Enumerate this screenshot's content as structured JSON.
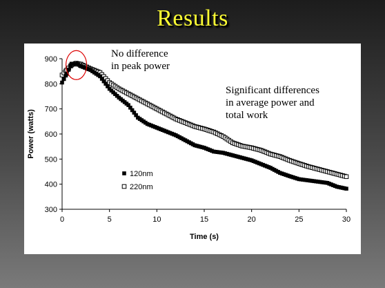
{
  "slide": {
    "title": "Results",
    "title_color": "#ffff33"
  },
  "annotations": {
    "peak": [
      "No difference",
      "in peak power"
    ],
    "average": [
      "Significant differences",
      "in average power and",
      "total work"
    ]
  },
  "chart_data": {
    "type": "scatter",
    "title": "",
    "xlabel": "Time (s)",
    "ylabel": "Power (watts)",
    "xlim": [
      0,
      30
    ],
    "ylim": [
      300,
      900
    ],
    "xticks": [
      0,
      5,
      10,
      15,
      20,
      25,
      30
    ],
    "yticks": [
      300,
      400,
      500,
      600,
      700,
      800,
      900
    ],
    "grid": false,
    "legend": "lower-left",
    "series": [
      {
        "name": "120nm",
        "marker": "filled-square",
        "color": "#000000",
        "x": [
          0,
          0.5,
          1,
          1.5,
          2,
          3,
          4,
          5,
          6,
          7,
          8,
          9,
          10,
          11,
          12,
          13,
          14,
          15,
          16,
          17,
          18,
          19,
          20,
          21,
          22,
          23,
          24,
          25,
          26,
          27,
          28,
          29,
          30
        ],
        "y": [
          805,
          840,
          880,
          880,
          870,
          855,
          830,
          780,
          745,
          715,
          665,
          640,
          625,
          610,
          595,
          575,
          555,
          545,
          530,
          525,
          515,
          505,
          495,
          480,
          465,
          445,
          432,
          420,
          415,
          410,
          405,
          390,
          382
        ]
      },
      {
        "name": "220nm",
        "marker": "open-square",
        "color": "#000000",
        "x": [
          0,
          0.5,
          1,
          1.5,
          2,
          3,
          4,
          5,
          6,
          7,
          8,
          9,
          10,
          11,
          12,
          13,
          14,
          15,
          16,
          17,
          18,
          19,
          20,
          21,
          22,
          23,
          24,
          25,
          26,
          27,
          28,
          29,
          30
        ],
        "y": [
          835,
          855,
          875,
          882,
          878,
          860,
          845,
          805,
          780,
          760,
          740,
          720,
          700,
          680,
          660,
          645,
          630,
          620,
          608,
          590,
          565,
          552,
          545,
          535,
          520,
          510,
          495,
          482,
          470,
          460,
          450,
          440,
          430
        ]
      }
    ],
    "highlight": {
      "shape": "ellipse",
      "color": "#dd0000",
      "x": 1.5,
      "y": 880
    }
  }
}
